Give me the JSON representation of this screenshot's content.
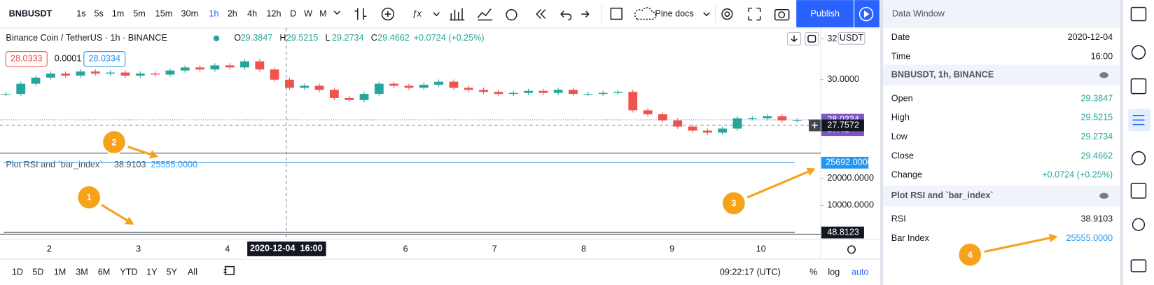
{
  "toolbar": {
    "symbol": "BNBUSDT",
    "intervals": [
      "1s",
      "5s",
      "1m",
      "5m",
      "15m",
      "30m",
      "1h",
      "2h",
      "4h",
      "12h",
      "D",
      "W",
      "M"
    ],
    "active_interval": "1h",
    "indicator_template": "Pine docs",
    "publish": "Publish"
  },
  "chart": {
    "legend_title": "Binance Coin / TetherUS · 1h · BINANCE",
    "ohlc": [
      {
        "label": "O",
        "value": "29.3847"
      },
      {
        "label": "H",
        "value": "29.5215"
      },
      {
        "label": "L",
        "value": "29.2734"
      },
      {
        "label": "C",
        "value": "29.4662"
      }
    ],
    "change": "+0.0724 (+0.25%)",
    "bid": "28.0333",
    "spread": "0.0001",
    "ask": "28.0334",
    "currency": "USDT",
    "price_ylim": [
      26.5,
      32.28
    ],
    "price_ticks": [
      {
        "value": 32,
        "label": "32"
      },
      {
        "value": 30,
        "label": "30.0000"
      }
    ],
    "last_price": {
      "value": 28.0334,
      "label": "28.0334"
    },
    "countdown": "37:43",
    "crosshair_price": {
      "value": 27.7572,
      "label": "27.7572"
    },
    "closes": [
      29.3,
      29.8,
      30.1,
      30.3,
      30.2,
      30.4,
      30.3,
      30.35,
      30.2,
      30.3,
      30.25,
      30.45,
      30.6,
      30.5,
      30.7,
      30.6,
      30.9,
      30.5,
      30.0,
      29.6,
      29.7,
      29.5,
      29.1,
      29.0,
      29.3,
      29.8,
      29.7,
      29.6,
      29.75,
      29.9,
      29.6,
      29.5,
      29.4,
      29.3,
      29.35,
      29.45,
      29.35,
      29.5,
      29.3,
      29.3,
      29.35,
      29.4,
      28.5,
      28.3,
      28.0,
      27.7,
      27.5,
      27.4,
      27.6,
      28.1,
      28.1,
      28.2,
      28.0,
      28.0
    ],
    "indicator": {
      "title": "Plot RSI and `bar_index`",
      "rsi": "38.9103",
      "bar_index": "25555.0000",
      "ylim": [
        -540,
        29190
      ],
      "ticks": [
        {
          "value": 20000,
          "label": "20000.0000"
        },
        {
          "value": 10000,
          "label": "10000.0000"
        }
      ],
      "bar_index_last": {
        "value": 25692,
        "label": "25692.0000"
      },
      "rsi_last": {
        "value": 48.8123,
        "label": "48.8123"
      }
    },
    "x_labels": [
      "2",
      "3",
      "4",
      "6",
      "7",
      "8",
      "9",
      "10"
    ],
    "crosshair_time": "2020-12-04  16:00"
  },
  "bottom_bar": {
    "ranges": [
      "1D",
      "5D",
      "1M",
      "3M",
      "6M",
      "YTD",
      "1Y",
      "5Y",
      "All"
    ],
    "clock": "09:22:17 (UTC)",
    "percent": "%",
    "log": "log",
    "auto": "auto"
  },
  "data_window": {
    "title": "Data Window",
    "rows": [
      {
        "label": "Date",
        "value": "2020-12-04"
      },
      {
        "label": "Time",
        "value": "16:00"
      }
    ],
    "sections": [
      {
        "title": "BNBUSDT, 1h, BINANCE",
        "rows": [
          {
            "label": "Open",
            "value": "29.3847",
            "color": "#26a69a"
          },
          {
            "label": "High",
            "value": "29.5215",
            "color": "#26a69a"
          },
          {
            "label": "Low",
            "value": "29.2734",
            "color": "#26a69a"
          },
          {
            "label": "Close",
            "value": "29.4662",
            "color": "#26a69a"
          },
          {
            "label": "Change",
            "value": "+0.0724 (+0.25%)",
            "color": "#26a69a"
          }
        ]
      },
      {
        "title": "Plot RSI and `bar_index`",
        "rows": [
          {
            "label": "RSI",
            "value": "38.9103",
            "color": "#131722"
          },
          {
            "label": "Bar Index",
            "value": "25555.0000",
            "color": "#2196f3"
          }
        ]
      }
    ]
  },
  "annotations": [
    "1",
    "2",
    "3",
    "4"
  ]
}
